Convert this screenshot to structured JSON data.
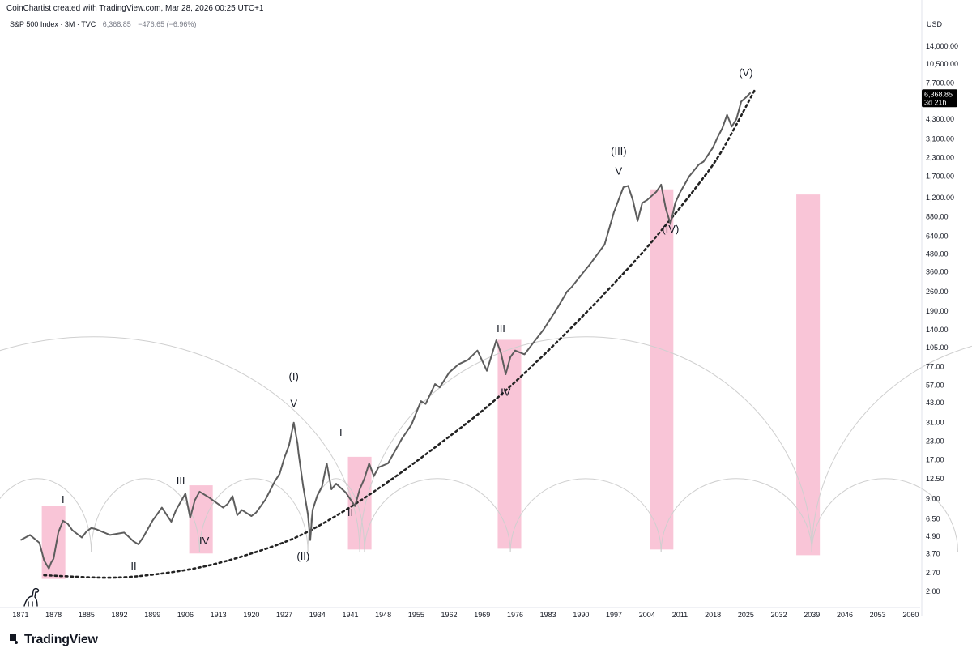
{
  "header": {
    "credit": "CoinChartist created with TradingView.com, Mar 28, 2026 00:25 UTC+1",
    "symbol": "S&P 500 Index · 3M · TVC",
    "price": "6,368.85",
    "change": "−476.65 (−6.96%)",
    "currency": "USD"
  },
  "price_tag": {
    "price": "6,368.85",
    "countdown": "3d 21h"
  },
  "brand": {
    "name": "TradingView"
  },
  "icons": {
    "mascot": "dinosaur-icon",
    "brand": "tradingview-logo-icon"
  },
  "colors": {
    "price_line": "#5d5d5d",
    "highlight": "#f8bbd0",
    "arcs": "#cfcfcf",
    "trend": "#222222"
  },
  "chart_data": {
    "type": "line",
    "y_scale": "log",
    "ylim": [
      1.6,
      18000
    ],
    "xlim": [
      1868,
      2062
    ],
    "x_ticks": [
      "1871",
      "1878",
      "1885",
      "1892",
      "1899",
      "1906",
      "1913",
      "1920",
      "1927",
      "1934",
      "1941",
      "1948",
      "1955",
      "1962",
      "1969",
      "1976",
      "1983",
      "1990",
      "1997",
      "2004",
      "2011",
      "2018",
      "2025",
      "2032",
      "2039",
      "2046",
      "2053",
      "2060"
    ],
    "y_ticks": [
      "14,000.00",
      "10,500.00",
      "7,700.00",
      "4,300.00",
      "3,100.00",
      "2,300.00",
      "1,700.00",
      "1,200.00",
      "880.00",
      "640.00",
      "480.00",
      "360.00",
      "260.00",
      "190.00",
      "140.00",
      "105.00",
      "77.00",
      "57.00",
      "43.00",
      "31.00",
      "23.00",
      "17.00",
      "12.50",
      "9.00",
      "6.50",
      "4.90",
      "3.70",
      "2.70",
      "2.00"
    ],
    "series": [
      {
        "x": [
          1871,
          1873,
          1875,
          1876,
          1877,
          1877.5,
          1878,
          1879,
          1880,
          1881,
          1882,
          1884,
          1885,
          1886,
          1887,
          1890,
          1893,
          1895,
          1896,
          1897,
          1899,
          1901,
          1903,
          1904,
          1906,
          1907,
          1908,
          1909,
          1911,
          1914,
          1915,
          1916,
          1917,
          1918,
          1920,
          1921,
          1923,
          1925,
          1926,
          1927,
          1928,
          1929,
          1929.8,
          1930,
          1931,
          1932,
          1932.5,
          1933,
          1934,
          1935,
          1936,
          1937,
          1938,
          1940,
          1942,
          1943,
          1944,
          1945,
          1946,
          1947,
          1949,
          1952,
          1954,
          1956,
          1957,
          1959,
          1960,
          1962,
          1964,
          1966,
          1968,
          1970,
          1972,
          1973,
          1974,
          1975,
          1976,
          1978,
          1980,
          1982,
          1985,
          1987,
          1988,
          1990,
          1992,
          1995,
          1997,
          1999,
          2000,
          2001,
          2002,
          2003,
          2004,
          2006,
          2007,
          2008,
          2009,
          2010,
          2011,
          2013,
          2015,
          2016,
          2018,
          2019,
          2020,
          2021,
          2022,
          2023,
          2024,
          2025,
          2026
        ],
        "y": [
          4.6,
          5.0,
          4.4,
          3.3,
          2.9,
          3.2,
          3.4,
          5.2,
          6.3,
          6.0,
          5.4,
          4.8,
          5.3,
          5.6,
          5.5,
          5.0,
          5.2,
          4.5,
          4.3,
          4.8,
          6.3,
          7.8,
          6.2,
          7.5,
          9.8,
          6.6,
          8.8,
          10.1,
          9.2,
          7.8,
          8.3,
          9.4,
          6.9,
          7.5,
          6.8,
          7.2,
          8.9,
          12.0,
          13.5,
          17.5,
          21.5,
          31.0,
          22.0,
          19.0,
          11.0,
          7.0,
          4.6,
          7.5,
          9.5,
          11.0,
          16.0,
          10.5,
          11.5,
          10.0,
          8.0,
          10.5,
          12.5,
          16.0,
          13.0,
          15.0,
          16.0,
          24.0,
          30.0,
          44.0,
          42.0,
          58.0,
          55.0,
          70.0,
          80.0,
          86.0,
          100.0,
          72.0,
          118.0,
          96.0,
          68.0,
          90.0,
          100.0,
          94.0,
          115.0,
          140.0,
          200.0,
          260.0,
          280.0,
          340.0,
          410.0,
          560.0,
          950.0,
          1420.0,
          1450.0,
          1150.0,
          820.0,
          1100.0,
          1150.0,
          1320.0,
          1480.0,
          1000.0,
          780.0,
          1100.0,
          1300.0,
          1700.0,
          2050.0,
          2150.0,
          2700.0,
          3200.0,
          3700.0,
          4600.0,
          3800.0,
          4300.0,
          5700.0,
          6100.0,
          6600.0
        ]
      }
    ],
    "trend_curve": {
      "style": "dotted",
      "x": [
        1876,
        1890,
        1900,
        1910,
        1920,
        1930,
        1940,
        1950,
        1960,
        1970,
        1980,
        1990,
        2000,
        2007,
        2015,
        2020,
        2027
      ],
      "y": [
        2.6,
        2.5,
        2.65,
        3.0,
        3.7,
        4.9,
        7.5,
        12.5,
        22.0,
        40.0,
        80.0,
        170.0,
        380.0,
        700.0,
        1500.0,
        2600.0,
        7000.0
      ]
    },
    "highlight_zones": [
      {
        "x0": 1875.5,
        "x1": 1880.5,
        "y0": 2.45,
        "y1": 8.0
      },
      {
        "x0": 1906.8,
        "x1": 1911.8,
        "y0": 3.7,
        "y1": 11.2
      },
      {
        "x0": 1940.5,
        "x1": 1945.5,
        "y0": 3.95,
        "y1": 17.8
      },
      {
        "x0": 1972.3,
        "x1": 1977.3,
        "y0": 4.0,
        "y1": 119.0
      },
      {
        "x0": 2004.6,
        "x1": 2009.6,
        "y0": 3.95,
        "y1": 1370.0
      },
      {
        "x0": 2035.7,
        "x1": 2040.7,
        "y0": 3.6,
        "y1": 1260.0
      }
    ],
    "cycle_arcs": {
      "small": [
        [
          1863,
          1886
        ],
        [
          1886,
          1909
        ],
        [
          1909,
          1932
        ],
        [
          1932,
          1944
        ],
        [
          1944,
          1975
        ],
        [
          1975,
          2007
        ],
        [
          2007,
          2039
        ],
        [
          2039,
          2070
        ]
      ],
      "small_peak": 12.5,
      "large": [
        [
          1830,
          1943
        ],
        [
          1943,
          2039
        ],
        [
          2039,
          2135
        ]
      ],
      "large_peak": 125.0,
      "base": 3.8
    },
    "wave_labels": [
      {
        "text": "I",
        "x": 1880,
        "y": 8.4
      },
      {
        "text": "II",
        "x": 1895,
        "y": 2.85
      },
      {
        "text": "III",
        "x": 1905,
        "y": 11.4
      },
      {
        "text": "IV",
        "x": 1910,
        "y": 4.3
      },
      {
        "text": "(I)",
        "x": 1929,
        "y": 62
      },
      {
        "text": "V",
        "x": 1929,
        "y": 40
      },
      {
        "text": "(II)",
        "x": 1931,
        "y": 3.35
      },
      {
        "text": "I",
        "x": 1939,
        "y": 25
      },
      {
        "text": "II",
        "x": 1941,
        "y": 6.8
      },
      {
        "text": "III",
        "x": 1973,
        "y": 135
      },
      {
        "text": "IV",
        "x": 1974,
        "y": 48
      },
      {
        "text": "(III)",
        "x": 1998,
        "y": 2400
      },
      {
        "text": "V",
        "x": 1998,
        "y": 1740
      },
      {
        "text": "(IV)",
        "x": 2009,
        "y": 680
      },
      {
        "text": "(V)",
        "x": 2025,
        "y": 8600
      }
    ]
  }
}
